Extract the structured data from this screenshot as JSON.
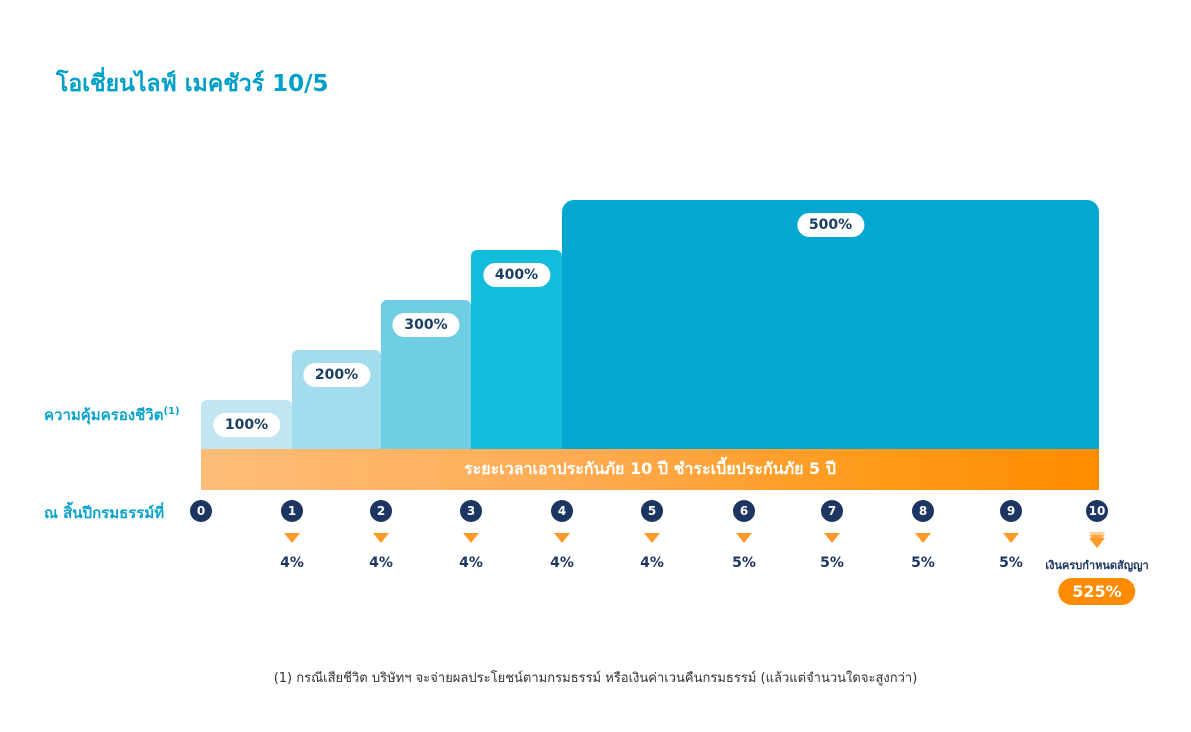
{
  "title": "โอเชี่ยนไลฟ์ เมคชัวร์ 10/5",
  "colors": {
    "accent": "#009fc9",
    "navy": "#1d3561",
    "orange": "#ff8c00"
  },
  "chart_data": {
    "type": "bar",
    "title": "โอเชี่ยนไลฟ์ เมคชัวร์ 10/5",
    "ylabel": "ความคุ้มครองชีวิต",
    "ylabel_note": "(1)",
    "xlabel": "ณ สิ้นปีกรมธรรม์ที่",
    "x": [
      "0",
      "1",
      "2",
      "3",
      "4",
      "5",
      "6",
      "7",
      "8",
      "9",
      "10"
    ],
    "coverage_steps": [
      {
        "from": 0,
        "to": 1,
        "value": 100,
        "label": "100%",
        "color": "#bfe6f1"
      },
      {
        "from": 1,
        "to": 2,
        "value": 200,
        "label": "200%",
        "color": "#a3dcec"
      },
      {
        "from": 2,
        "to": 3,
        "value": 300,
        "label": "300%",
        "color": "#6fcde4"
      },
      {
        "from": 3,
        "to": 4,
        "value": 400,
        "label": "400%",
        "color": "#12bddc"
      },
      {
        "from": 4,
        "to": 10,
        "value": 500,
        "label": "500%",
        "color": "#03a7d0"
      }
    ],
    "band_label": "ระยะเวลาเอาประกันภัย 10 ปี ชำระเบี้ยประกันภัย 5 ปี",
    "cash_back": [
      {
        "year": 1,
        "label": "4%"
      },
      {
        "year": 2,
        "label": "4%"
      },
      {
        "year": 3,
        "label": "4%"
      },
      {
        "year": 4,
        "label": "4%"
      },
      {
        "year": 5,
        "label": "4%"
      },
      {
        "year": 6,
        "label": "5%"
      },
      {
        "year": 7,
        "label": "5%"
      },
      {
        "year": 8,
        "label": "5%"
      },
      {
        "year": 9,
        "label": "5%"
      }
    ],
    "maturity_label": "เงินครบกำหนดสัญญา",
    "maturity_value": "525%"
  },
  "footnote": "(1) กรณีเสียชีวิต บริษัทฯ จะจ่ายผลประโยชน์ตามกรมธรรม์ หรือเงินค่าเวนคืนกรมธรรม์ (แล้วแต่จำนวนใดจะสูงกว่า)"
}
